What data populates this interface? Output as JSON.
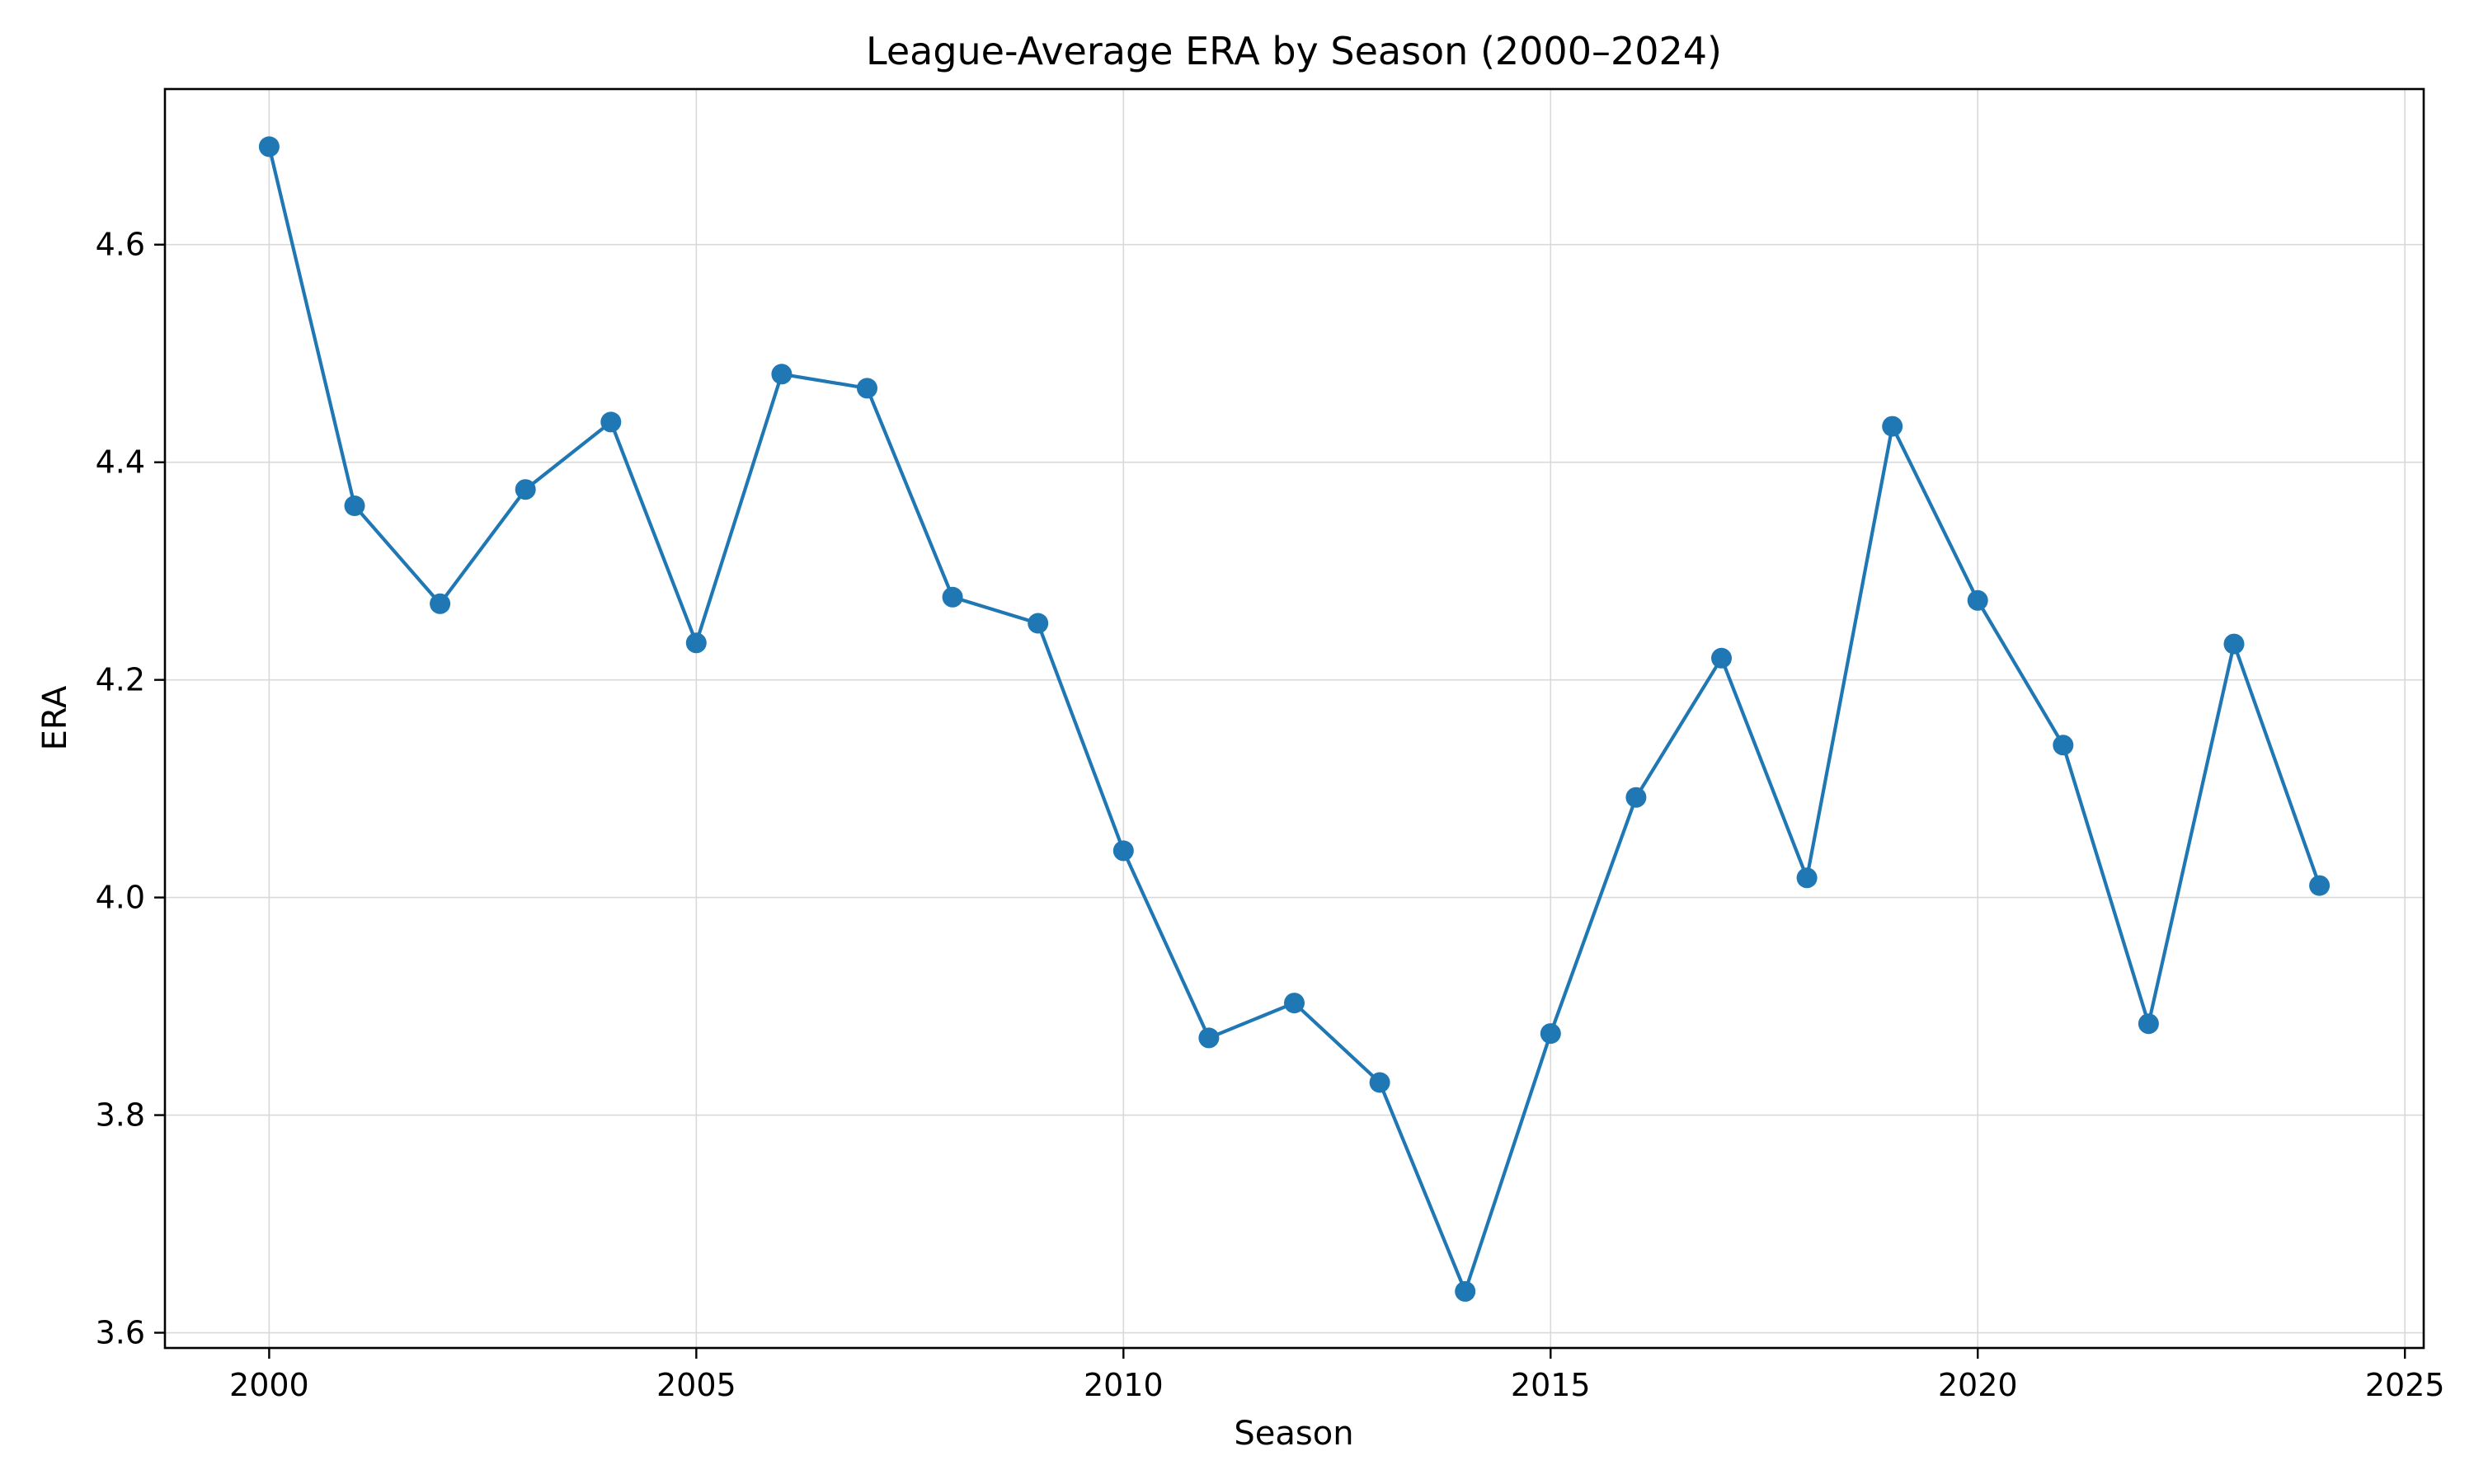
{
  "chart_data": {
    "type": "line",
    "title": "League-Average ERA by Season (2000–2024)",
    "xlabel": "Season",
    "ylabel": "ERA",
    "xlim": [
      1998.78,
      2025.22
    ],
    "ylim": [
      3.586,
      4.743
    ],
    "xticks": [
      2000,
      2005,
      2010,
      2015,
      2020,
      2025
    ],
    "yticks": [
      3.6,
      3.8,
      4.0,
      4.2,
      4.4,
      4.6
    ],
    "ytick_labels": [
      "3.6",
      "3.8",
      "4.0",
      "4.2",
      "4.4",
      "4.6"
    ],
    "grid": true,
    "color": "#1f77b4",
    "series": [
      {
        "x": [
          2000,
          2001,
          2002,
          2003,
          2004,
          2005,
          2006,
          2007,
          2008,
          2009,
          2010,
          2011,
          2012,
          2013,
          2014,
          2015,
          2016,
          2017,
          2018,
          2019,
          2020,
          2021,
          2022,
          2023,
          2024
        ],
        "values": [
          4.69,
          4.36,
          4.27,
          4.375,
          4.437,
          4.234,
          4.481,
          4.468,
          4.276,
          4.252,
          4.043,
          3.871,
          3.903,
          3.83,
          3.638,
          3.875,
          4.092,
          4.22,
          4.018,
          4.433,
          4.273,
          4.14,
          3.884,
          4.233,
          4.011
        ]
      }
    ]
  }
}
